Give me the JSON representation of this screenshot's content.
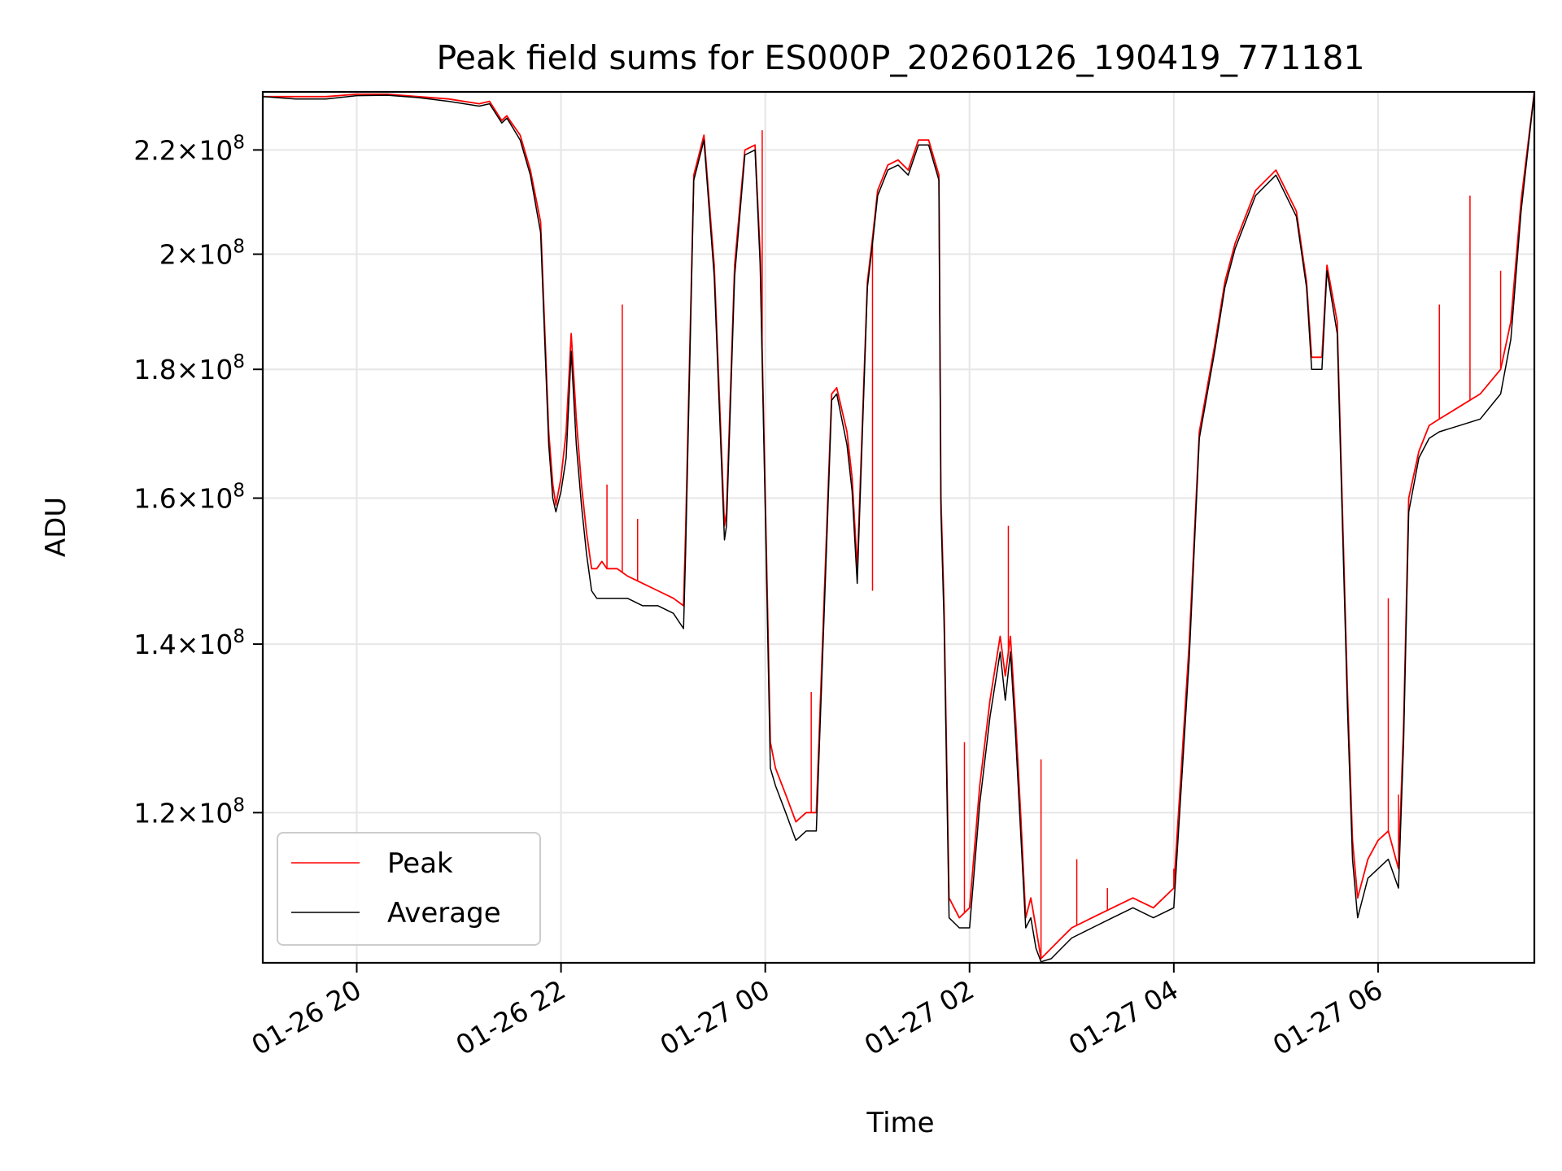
{
  "chart_data": {
    "type": "line",
    "title": "Peak field sums for ES000P_20260126_190419_771181",
    "xlabel": "Time",
    "ylabel": "ADU",
    "yscale": "log",
    "ylim": [
      104600000.0,
      232000000.0
    ],
    "xlim_hours": [
      -0.92,
      11.53
    ],
    "grid": true,
    "legend_position": "lower-left",
    "x_ticks": [
      {
        "hour": 0,
        "label": "01-26 20"
      },
      {
        "hour": 2,
        "label": "01-26 22"
      },
      {
        "hour": 4,
        "label": "01-27 00"
      },
      {
        "hour": 6,
        "label": "01-27 02"
      },
      {
        "hour": 8,
        "label": "01-27 04"
      },
      {
        "hour": 10,
        "label": "01-27 06"
      }
    ],
    "y_ticks": [
      {
        "value": 120000000.0,
        "mant": "1.2",
        "exp": "8"
      },
      {
        "value": 140000000.0,
        "mant": "1.4",
        "exp": "8"
      },
      {
        "value": 160000000.0,
        "mant": "1.6",
        "exp": "8"
      },
      {
        "value": 180000000.0,
        "mant": "1.8",
        "exp": "8"
      },
      {
        "value": 200000000.0,
        "mant": "2",
        "exp": "8"
      },
      {
        "value": 220000000.0,
        "mant": "2.2",
        "exp": "8"
      }
    ],
    "x_units": "hours since 2026-01-26 20:00",
    "series": [
      {
        "name": "Peak",
        "color": "#ff0000",
        "x": [
          -0.92,
          -0.6,
          -0.3,
          0.0,
          0.3,
          0.6,
          0.9,
          1.2,
          1.3,
          1.42,
          1.47,
          1.5,
          1.6,
          1.7,
          1.8,
          1.88,
          1.92,
          1.95,
          2.0,
          2.05,
          2.1,
          2.15,
          2.2,
          2.25,
          2.3,
          2.35,
          2.4,
          2.45,
          2.55,
          2.65,
          2.8,
          2.95,
          3.1,
          3.2,
          3.22,
          3.3,
          3.4,
          3.5,
          3.6,
          3.62,
          3.7,
          3.8,
          3.9,
          3.95,
          4.0,
          4.05,
          4.1,
          4.2,
          4.3,
          4.4,
          4.5,
          4.6,
          4.65,
          4.7,
          4.8,
          4.85,
          4.9,
          5.0,
          5.05,
          5.1,
          5.2,
          5.3,
          5.4,
          5.5,
          5.6,
          5.7,
          5.72,
          5.75,
          5.8,
          5.9,
          6.0,
          6.1,
          6.2,
          6.3,
          6.35,
          6.4,
          6.45,
          6.5,
          6.55,
          6.6,
          6.65,
          6.7,
          6.8,
          6.9,
          7.0,
          7.2,
          7.4,
          7.6,
          7.8,
          8.0,
          8.15,
          8.25,
          8.4,
          8.5,
          8.6,
          8.8,
          9.0,
          9.2,
          9.3,
          9.35,
          9.45,
          9.5,
          9.6,
          9.7,
          9.75,
          9.8,
          9.9,
          10.0,
          10.1,
          10.2,
          10.25,
          10.3,
          10.4,
          10.5,
          10.6,
          10.8,
          11.0,
          11.2,
          11.3,
          11.4,
          11.53
        ],
        "y": [
          231000000.0,
          231000000.0,
          231000000.0,
          231500000.0,
          231500000.0,
          231000000.0,
          230500000.0,
          229500000.0,
          230000000.0,
          226000000.0,
          227000000.0,
          226000000.0,
          223000000.0,
          216000000.0,
          206000000.0,
          170000000.0,
          162000000.0,
          159000000.0,
          163000000.0,
          170000000.0,
          186000000.0,
          172000000.0,
          162000000.0,
          155000000.0,
          150000000.0,
          150000000.0,
          151000000.0,
          150000000.0,
          150000000.0,
          149000000.0,
          148000000.0,
          147000000.0,
          146000000.0,
          145000000.0,
          155000000.0,
          215000000.0,
          223000000.0,
          198000000.0,
          156000000.0,
          158000000.0,
          198000000.0,
          220000000.0,
          221000000.0,
          200000000.0,
          160000000.0,
          128000000.0,
          125000000.0,
          122000000.0,
          119000000.0,
          120000000.0,
          120000000.0,
          155000000.0,
          176000000.0,
          177000000.0,
          170000000.0,
          163000000.0,
          150000000.0,
          195000000.0,
          203000000.0,
          212000000.0,
          217000000.0,
          218000000.0,
          216000000.0,
          222000000.0,
          222000000.0,
          215000000.0,
          160000000.0,
          145000000.0,
          111000000.0,
          109000000.0,
          110000000.0,
          123000000.0,
          133000000.0,
          141000000.0,
          136000000.0,
          141000000.0,
          131000000.0,
          120000000.0,
          109000000.0,
          111000000.0,
          108000000.0,
          105000000.0,
          106000000.0,
          107000000.0,
          108000000.0,
          109000000.0,
          110000000.0,
          111000000.0,
          110000000.0,
          112000000.0,
          140000000.0,
          170000000.0,
          184000000.0,
          195000000.0,
          202000000.0,
          212000000.0,
          216000000.0,
          208000000.0,
          195000000.0,
          182000000.0,
          182000000.0,
          198000000.0,
          188000000.0,
          134000000.0,
          117000000.0,
          111000000.0,
          115000000.0,
          117000000.0,
          118000000.0,
          114000000.0,
          130000000.0,
          160000000.0,
          167000000.0,
          171000000.0,
          172000000.0,
          174000000.0,
          176000000.0,
          180000000.0,
          188000000.0,
          210000000.0,
          232000000.0
        ],
        "spikes": [
          {
            "hour": 2.6,
            "value": 191000000.0
          },
          {
            "hour": 2.45,
            "value": 162000000.0
          },
          {
            "hour": 2.75,
            "value": 157000000.0
          },
          {
            "hour": 3.97,
            "value": 224000000.0
          },
          {
            "hour": 4.45,
            "value": 134000000.0
          },
          {
            "hour": 5.05,
            "value": 147000000.0
          },
          {
            "hour": 5.95,
            "value": 128000000.0
          },
          {
            "hour": 6.38,
            "value": 156000000.0
          },
          {
            "hour": 6.7,
            "value": 126000000.0
          },
          {
            "hour": 7.05,
            "value": 115000000.0
          },
          {
            "hour": 7.35,
            "value": 112000000.0
          },
          {
            "hour": 8.0,
            "value": 114000000.0
          },
          {
            "hour": 10.1,
            "value": 146000000.0
          },
          {
            "hour": 10.2,
            "value": 122000000.0
          },
          {
            "hour": 10.9,
            "value": 211000000.0
          },
          {
            "hour": 10.6,
            "value": 191000000.0
          },
          {
            "hour": 11.2,
            "value": 197000000.0
          }
        ]
      },
      {
        "name": "Average",
        "color": "#000000",
        "x": [
          -0.92,
          -0.6,
          -0.3,
          0.0,
          0.3,
          0.6,
          0.9,
          1.2,
          1.3,
          1.42,
          1.47,
          1.5,
          1.6,
          1.7,
          1.8,
          1.88,
          1.92,
          1.95,
          2.0,
          2.05,
          2.1,
          2.15,
          2.2,
          2.25,
          2.3,
          2.35,
          2.4,
          2.45,
          2.55,
          2.65,
          2.8,
          2.95,
          3.1,
          3.2,
          3.22,
          3.3,
          3.4,
          3.5,
          3.6,
          3.62,
          3.7,
          3.8,
          3.9,
          3.95,
          4.0,
          4.05,
          4.1,
          4.2,
          4.3,
          4.4,
          4.5,
          4.6,
          4.65,
          4.7,
          4.8,
          4.85,
          4.9,
          5.0,
          5.05,
          5.1,
          5.2,
          5.3,
          5.4,
          5.5,
          5.6,
          5.7,
          5.72,
          5.75,
          5.8,
          5.9,
          6.0,
          6.1,
          6.2,
          6.3,
          6.35,
          6.4,
          6.45,
          6.5,
          6.55,
          6.6,
          6.65,
          6.7,
          6.8,
          6.9,
          7.0,
          7.2,
          7.4,
          7.6,
          7.8,
          8.0,
          8.15,
          8.25,
          8.4,
          8.5,
          8.6,
          8.8,
          9.0,
          9.2,
          9.3,
          9.35,
          9.45,
          9.5,
          9.6,
          9.7,
          9.75,
          9.8,
          9.9,
          10.0,
          10.1,
          10.2,
          10.25,
          10.3,
          10.4,
          10.5,
          10.6,
          10.8,
          11.0,
          11.2,
          11.3,
          11.4,
          11.53
        ],
        "y": [
          231000000.0,
          230500000.0,
          230500000.0,
          231200000.0,
          231300000.0,
          230800000.0,
          230000000.0,
          229000000.0,
          229500000.0,
          225500000.0,
          226500000.0,
          225500000.0,
          222000000.0,
          215000000.0,
          204000000.0,
          168000000.0,
          160000000.0,
          158000000.0,
          161000000.0,
          166000000.0,
          183000000.0,
          168000000.0,
          159000000.0,
          152000000.0,
          147000000.0,
          146000000.0,
          146000000.0,
          146000000.0,
          146000000.0,
          146000000.0,
          145000000.0,
          145000000.0,
          144000000.0,
          142000000.0,
          152000000.0,
          214000000.0,
          222000000.0,
          196000000.0,
          154000000.0,
          156000000.0,
          196000000.0,
          219000000.0,
          220000000.0,
          198000000.0,
          158000000.0,
          125000000.0,
          123000000.0,
          120000000.0,
          117000000.0,
          118000000.0,
          118000000.0,
          153000000.0,
          175000000.0,
          176000000.0,
          168000000.0,
          161000000.0,
          148000000.0,
          194000000.0,
          202000000.0,
          211000000.0,
          216000000.0,
          217000000.0,
          215000000.0,
          221000000.0,
          221000000.0,
          214000000.0,
          158000000.0,
          143000000.0,
          109000000.0,
          108000000.0,
          108000000.0,
          121000000.0,
          131000000.0,
          139000000.0,
          133000000.0,
          139000000.0,
          129000000.0,
          118000000.0,
          108000000.0,
          109000000.0,
          106000000.0,
          104700000.0,
          105000000.0,
          106000000.0,
          107000000.0,
          108000000.0,
          109000000.0,
          110000000.0,
          109000000.0,
          110000000.0,
          138000000.0,
          169000000.0,
          183000000.0,
          194000000.0,
          201000000.0,
          211000000.0,
          215000000.0,
          207000000.0,
          194000000.0,
          180000000.0,
          180000000.0,
          197000000.0,
          186000000.0,
          132000000.0,
          115000000.0,
          109000000.0,
          113000000.0,
          114000000.0,
          115000000.0,
          112000000.0,
          128000000.0,
          158000000.0,
          166000000.0,
          169000000.0,
          170000000.0,
          171000000.0,
          172000000.0,
          176000000.0,
          185000000.0,
          208000000.0,
          232000000.0
        ]
      }
    ]
  }
}
